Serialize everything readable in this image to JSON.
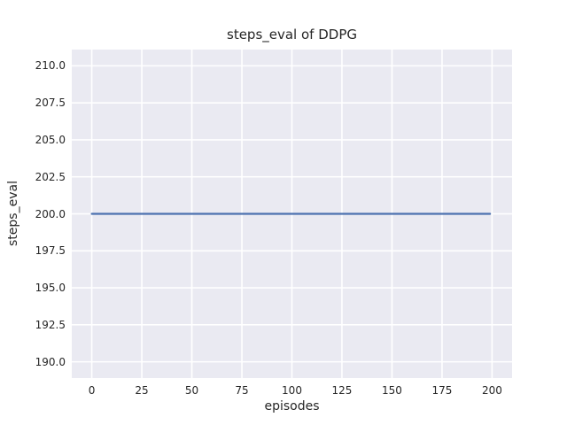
{
  "chart_data": {
    "type": "line",
    "title": "steps_eval of DDPG",
    "xlabel": "episodes",
    "ylabel": "steps_eval",
    "x_ticks": [
      0,
      25,
      50,
      75,
      100,
      125,
      150,
      175,
      200
    ],
    "x_tick_labels": [
      "0",
      "25",
      "50",
      "75",
      "100",
      "125",
      "150",
      "175",
      "200"
    ],
    "y_ticks": [
      190.0,
      192.5,
      195.0,
      197.5,
      200.0,
      202.5,
      205.0,
      207.5,
      210.0
    ],
    "y_tick_labels": [
      "190.0",
      "192.5",
      "195.0",
      "197.5",
      "200.0",
      "202.5",
      "205.0",
      "207.5",
      "210.0"
    ],
    "xlim": [
      -10,
      210
    ],
    "ylim": [
      188.9,
      211.1
    ],
    "grid": true,
    "legend": false,
    "series": [
      {
        "name": "DDPG",
        "x": [
          0,
          199
        ],
        "y": [
          200.0,
          200.0
        ],
        "color": "#4c72b0",
        "linewidth": 2.2
      }
    ],
    "colors": {
      "figure_bg": "#ffffff",
      "plot_bg": "#eaeaf2",
      "grid": "#ffffff",
      "text": "#262626"
    }
  }
}
